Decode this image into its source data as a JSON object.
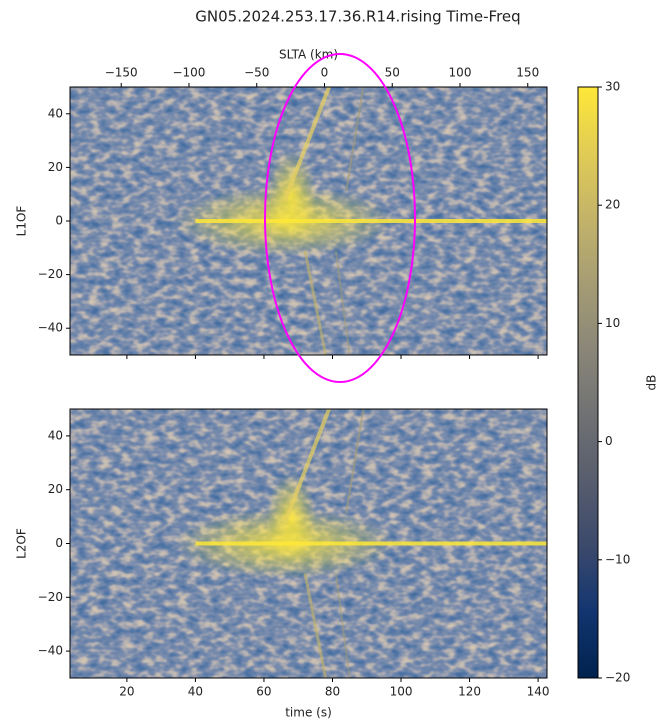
{
  "chart_data": [
    {
      "type": "heatmap",
      "title": "GN05.2024.253.17.36.R14.rising Time-Freq",
      "ylabel": "L1OF",
      "ylim": [
        -50,
        50
      ],
      "yticks": [
        {
          "value": -40,
          "label": "−40"
        },
        {
          "value": -20,
          "label": "−20"
        },
        0,
        20,
        40
      ],
      "xlim": [
        3.4,
        142.6
      ],
      "top_axis": {
        "label": "SLTA (km)",
        "xlim": [
          -187.8,
          164.2
        ],
        "xticks": [
          {
            "value": -150,
            "label": "−150"
          },
          {
            "value": -100,
            "label": "−100"
          },
          {
            "value": -50,
            "label": "−50"
          },
          0,
          50,
          100,
          150
        ]
      }
    },
    {
      "type": "heatmap",
      "ylabel": "L2OF",
      "xlabel": "time (s)",
      "ylim": [
        -50,
        50
      ],
      "yticks": [
        {
          "value": -40,
          "label": "−40"
        },
        {
          "value": -20,
          "label": "−20"
        },
        0,
        20,
        40
      ],
      "xlim": [
        3.4,
        142.6
      ],
      "xticks": [
        20,
        40,
        60,
        80,
        100,
        120,
        140
      ]
    }
  ],
  "colorbar": {
    "label": "dB",
    "lim": [
      -20,
      30
    ],
    "ticks": [
      {
        "value": -20,
        "label": "−20"
      },
      {
        "value": -10,
        "label": "−10"
      },
      0,
      10,
      20,
      30
    ],
    "colormap": [
      "#00224e",
      "#123570",
      "#3b496c",
      "#575d6d",
      "#707173",
      "#8a8678",
      "#a59c74",
      "#c3b369",
      "#e1cc55",
      "#fee838"
    ]
  }
}
